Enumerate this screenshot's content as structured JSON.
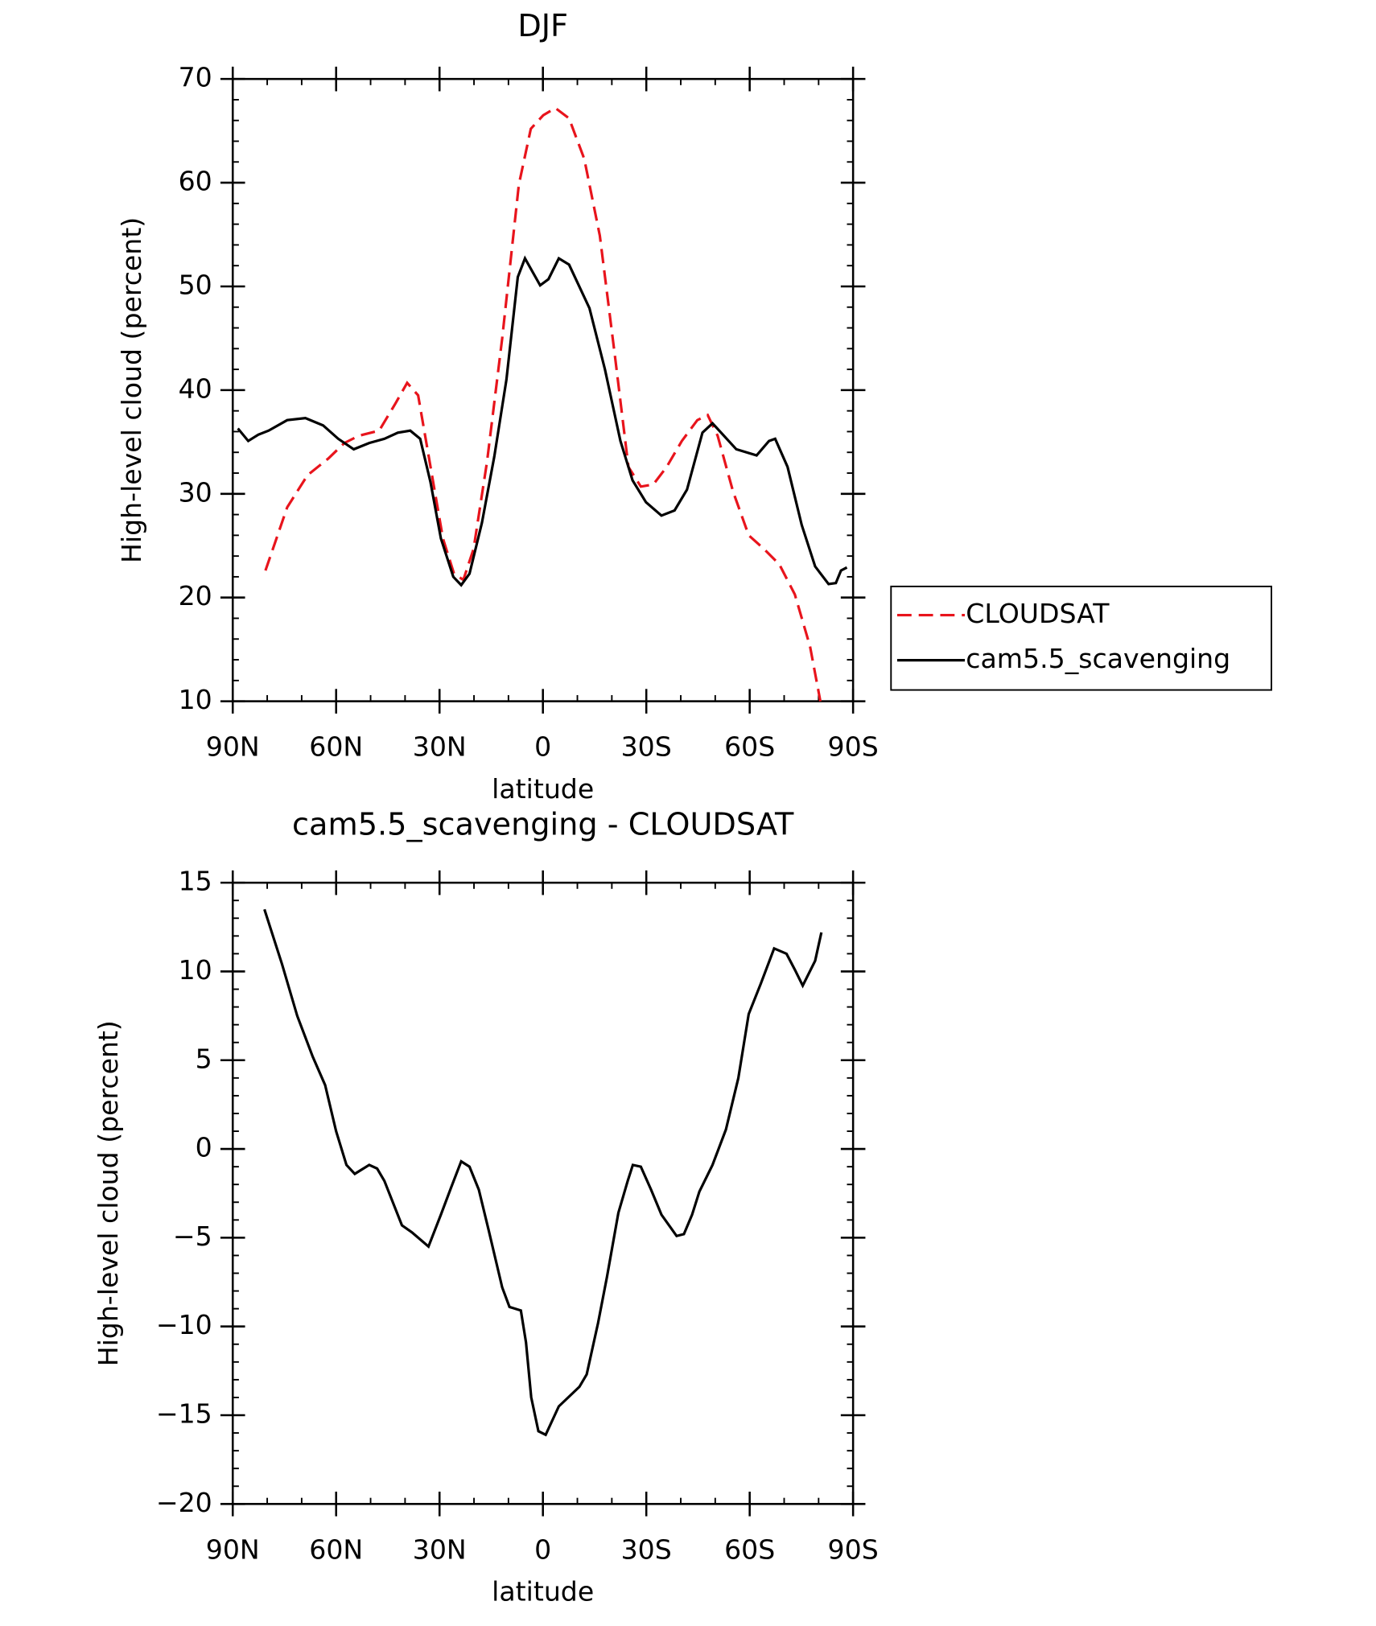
{
  "chart_data": [
    {
      "type": "line",
      "title": "DJF",
      "xlabel": "latitude",
      "ylabel": "High-level cloud (percent)",
      "xlim": [
        90,
        -90
      ],
      "ylim": [
        10,
        70
      ],
      "xticks": [
        {
          "value": 90,
          "label": "90N"
        },
        {
          "value": 60,
          "label": "60N"
        },
        {
          "value": 30,
          "label": "30N"
        },
        0,
        {
          "value": -30,
          "label": "30S"
        },
        {
          "value": -60,
          "label": "60S"
        },
        {
          "value": -90,
          "label": "90S"
        }
      ],
      "yticks": [
        10,
        20,
        30,
        40,
        50,
        60,
        70
      ],
      "legend": "right",
      "series": [
        {
          "name": "CLOUDSAT",
          "color": "#e8141c",
          "dash": true,
          "x": [
            80.5,
            74.2,
            68.3,
            62.3,
            57.6,
            53.4,
            47.5,
            43.0,
            39.4,
            36.2,
            32.6,
            29.0,
            25.8,
            23.1,
            20.1,
            16.2,
            11.8,
            7.0,
            3.5,
            -0.1,
            -3.6,
            -7.6,
            -12.0,
            -16.5,
            -21.0,
            -24.8,
            -28.4,
            -32.0,
            -35.9,
            -40.3,
            -44.8,
            -47.8,
            -50.7,
            -55.2,
            -59.7,
            -64.1,
            -68.6,
            -73.1,
            -77.5,
            -80.5
          ],
          "values": [
            22.6,
            28.7,
            31.8,
            33.4,
            34.9,
            35.6,
            36.1,
            38.6,
            40.7,
            39.5,
            32.6,
            25.7,
            22.3,
            21.7,
            24.7,
            33.1,
            45.0,
            59.8,
            65.2,
            66.5,
            67.2,
            66.2,
            62.3,
            54.9,
            43.0,
            32.6,
            30.7,
            30.9,
            32.6,
            35.1,
            37.1,
            37.6,
            35.6,
            30.2,
            26.0,
            24.7,
            23.2,
            20.3,
            15.3,
            10.0
          ]
        },
        {
          "name": "cam5.5_scavenging",
          "color": "#000000",
          "dash": false,
          "x": [
            88.5,
            85.5,
            82.6,
            79.6,
            74.2,
            68.9,
            63.8,
            59.4,
            54.9,
            50.4,
            46.0,
            42.1,
            38.5,
            35.6,
            32.6,
            29.6,
            26.0,
            23.7,
            21.3,
            17.7,
            14.1,
            10.6,
            7.3,
            5.2,
            0.8,
            -1.6,
            -4.6,
            -7.6,
            -13.5,
            -18.0,
            -22.5,
            -26.0,
            -29.9,
            -34.4,
            -38.2,
            -41.8,
            -46.3,
            -49.2,
            -56.1,
            -62.0,
            -65.6,
            -67.4,
            -71.0,
            -75.1,
            -79.0,
            -82.9,
            -85.0,
            -86.5,
            -88.2
          ],
          "values": [
            36.3,
            35.1,
            35.7,
            36.1,
            37.1,
            37.3,
            36.6,
            35.3,
            34.3,
            34.9,
            35.3,
            35.9,
            36.1,
            35.3,
            31.1,
            25.7,
            22.0,
            21.2,
            22.3,
            27.2,
            33.6,
            41.0,
            50.9,
            52.7,
            50.1,
            50.7,
            52.7,
            52.1,
            47.9,
            42.0,
            35.1,
            31.3,
            29.2,
            27.9,
            28.4,
            30.4,
            35.9,
            36.8,
            34.3,
            33.7,
            35.1,
            35.3,
            32.6,
            27.0,
            23.0,
            21.3,
            21.4,
            22.6,
            22.9
          ]
        }
      ]
    },
    {
      "type": "line",
      "title": "cam5.5_scavenging - CLOUDSAT",
      "xlabel": "latitude",
      "ylabel": "High-level cloud (percent)",
      "xlim": [
        90,
        -90
      ],
      "ylim": [
        -20,
        15
      ],
      "xticks": [
        {
          "value": 90,
          "label": "90N"
        },
        {
          "value": 60,
          "label": "60N"
        },
        {
          "value": 30,
          "label": "30N"
        },
        0,
        {
          "value": -30,
          "label": "30S"
        },
        {
          "value": -60,
          "label": "60S"
        },
        {
          "value": -90,
          "label": "90S"
        }
      ],
      "yticks": [
        {
          "value": -20,
          "label": "−20"
        },
        {
          "value": -15,
          "label": "−15"
        },
        {
          "value": -10,
          "label": "−10"
        },
        {
          "value": -5,
          "label": "−5"
        },
        0,
        5,
        10,
        15
      ],
      "series": [
        {
          "color": "#000000",
          "dash": false,
          "x": [
            80.8,
            75.7,
            71.3,
            66.8,
            63.2,
            60.0,
            57.0,
            54.6,
            50.4,
            48.1,
            46.0,
            40.9,
            38.0,
            33.2,
            29.6,
            26.7,
            23.7,
            21.3,
            18.6,
            15.7,
            11.8,
            9.7,
            6.4,
            4.9,
            3.4,
            1.3,
            -0.8,
            -4.6,
            -10.6,
            -12.7,
            -16.0,
            -18.6,
            -21.9,
            -24.6,
            -26.1,
            -28.4,
            -31.4,
            -34.4,
            -38.8,
            -40.9,
            -43.3,
            -45.4,
            -49.2,
            -53.1,
            -56.7,
            -59.7,
            -63.2,
            -67.1,
            -70.7,
            -73.1,
            -75.4,
            -79.0,
            -80.8
          ],
          "values": [
            13.5,
            10.4,
            7.5,
            5.2,
            3.6,
            1.0,
            -0.9,
            -1.4,
            -0.9,
            -1.1,
            -1.8,
            -4.3,
            -4.7,
            -5.5,
            -3.7,
            -2.2,
            -0.7,
            -1.0,
            -2.3,
            -4.6,
            -7.8,
            -8.9,
            -9.1,
            -10.9,
            -14.0,
            -15.9,
            -16.1,
            -14.5,
            -13.4,
            -12.7,
            -9.8,
            -7.2,
            -3.6,
            -1.8,
            -0.9,
            -1.0,
            -2.3,
            -3.7,
            -4.9,
            -4.8,
            -3.7,
            -2.4,
            -0.9,
            1.1,
            4.0,
            7.6,
            9.3,
            11.3,
            11.0,
            10.1,
            9.2,
            10.6,
            12.2
          ]
        }
      ]
    }
  ]
}
